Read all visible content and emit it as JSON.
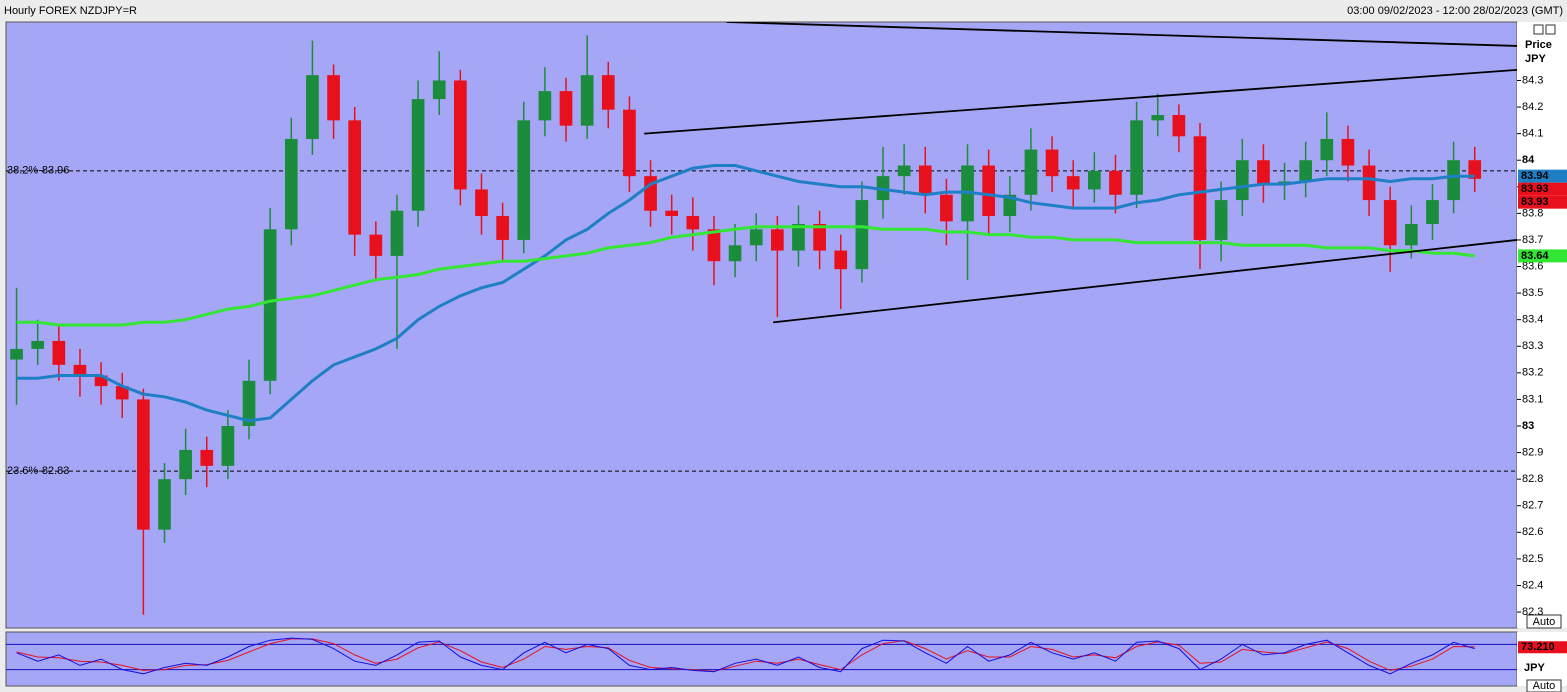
{
  "chart_data": [
    {
      "type": "candlestick",
      "title": "Hourly FOREX NZDJPY=R",
      "subtitle": "03:00 09/02/2023 - 12:00 28/02/2023 (GMT)",
      "axis_label": "Price",
      "unit": "JPY",
      "scale_mode": "Auto",
      "xlim": [
        -0.5,
        71
      ],
      "ylim": [
        82.24,
        84.52
      ],
      "yticks": [
        82.3,
        82.4,
        82.5,
        82.6,
        82.7,
        82.8,
        82.9,
        83,
        83.1,
        83.2,
        83.3,
        83.4,
        83.5,
        83.6,
        83.7,
        83.8,
        83.9,
        84,
        84.1,
        84.2,
        84.3
      ],
      "up_color": "#1a8c3c",
      "down_color": "#e8101c",
      "open": [
        83.25,
        83.29,
        83.32,
        83.23,
        83.19,
        83.15,
        83.1,
        82.61,
        82.8,
        82.91,
        82.85,
        83.0,
        83.17,
        83.74,
        84.08,
        84.32,
        84.15,
        83.72,
        83.64,
        83.81,
        84.23,
        84.3,
        83.89,
        83.79,
        83.7,
        84.15,
        84.26,
        84.13,
        84.32,
        84.19,
        83.94,
        83.81,
        83.79,
        83.74,
        83.62,
        83.68,
        83.74,
        83.66,
        83.76,
        83.66,
        83.59,
        83.85,
        83.94,
        83.98,
        83.87,
        83.77,
        83.98,
        83.79,
        83.87,
        84.04,
        83.94,
        83.89,
        83.96,
        83.87,
        84.15,
        84.17,
        84.09,
        83.7,
        83.85,
        84.0,
        83.91,
        83.92,
        84.0,
        84.08,
        83.98,
        83.85,
        83.68,
        83.76,
        83.85,
        84.0
      ],
      "high": [
        83.52,
        83.4,
        83.38,
        83.29,
        83.24,
        83.2,
        83.14,
        82.86,
        82.99,
        82.96,
        83.06,
        83.25,
        83.82,
        84.16,
        84.45,
        84.36,
        84.2,
        83.77,
        83.87,
        84.3,
        84.41,
        84.34,
        83.95,
        83.84,
        84.22,
        84.35,
        84.31,
        84.47,
        84.37,
        84.24,
        84.0,
        83.87,
        83.86,
        83.79,
        83.76,
        83.8,
        83.79,
        83.83,
        83.81,
        83.72,
        83.92,
        84.05,
        84.06,
        84.05,
        83.93,
        84.06,
        84.04,
        83.94,
        84.12,
        84.09,
        84.0,
        84.03,
        84.02,
        84.22,
        84.25,
        84.21,
        84.14,
        83.92,
        84.08,
        84.06,
        83.99,
        84.07,
        84.18,
        84.13,
        84.04,
        83.9,
        83.83,
        83.91,
        84.07,
        84.05
      ],
      "low": [
        83.08,
        83.23,
        83.17,
        83.11,
        83.08,
        83.03,
        82.29,
        82.56,
        82.74,
        82.77,
        82.8,
        82.95,
        83.12,
        83.68,
        84.02,
        84.08,
        83.64,
        83.55,
        83.29,
        83.75,
        84.17,
        83.83,
        83.72,
        83.62,
        83.65,
        84.09,
        84.07,
        84.08,
        84.12,
        83.88,
        83.75,
        83.72,
        83.66,
        83.53,
        83.56,
        83.62,
        83.41,
        83.6,
        83.59,
        83.44,
        83.54,
        83.78,
        83.87,
        83.8,
        83.68,
        83.55,
        83.72,
        83.73,
        83.81,
        83.88,
        83.82,
        83.84,
        83.8,
        83.82,
        84.09,
        84.03,
        83.59,
        83.62,
        83.79,
        83.84,
        83.85,
        83.86,
        83.94,
        83.92,
        83.79,
        83.58,
        83.63,
        83.7,
        83.8,
        83.88
      ],
      "close": [
        83.29,
        83.32,
        83.23,
        83.19,
        83.15,
        83.1,
        82.61,
        82.8,
        82.91,
        82.85,
        83.0,
        83.17,
        83.74,
        84.08,
        84.32,
        84.15,
        83.72,
        83.64,
        83.81,
        84.23,
        84.3,
        83.89,
        83.79,
        83.7,
        84.15,
        84.26,
        84.13,
        84.32,
        84.19,
        83.94,
        83.81,
        83.79,
        83.74,
        83.62,
        83.68,
        83.74,
        83.66,
        83.76,
        83.66,
        83.59,
        83.85,
        83.94,
        83.98,
        83.87,
        83.77,
        83.98,
        83.79,
        83.87,
        84.04,
        83.94,
        83.89,
        83.96,
        83.87,
        84.15,
        84.17,
        84.09,
        83.7,
        83.85,
        84.0,
        83.91,
        83.92,
        84.0,
        84.08,
        83.98,
        83.85,
        83.68,
        83.76,
        83.85,
        84.0,
        83.93
      ],
      "overlays": [
        {
          "color": "#1f7fc4",
          "values": [
            83.18,
            83.18,
            83.19,
            83.19,
            83.19,
            83.15,
            83.12,
            83.11,
            83.09,
            83.06,
            83.04,
            83.02,
            83.03,
            83.1,
            83.17,
            83.23,
            83.26,
            83.29,
            83.33,
            83.4,
            83.45,
            83.49,
            83.52,
            83.54,
            83.59,
            83.64,
            83.7,
            83.74,
            83.8,
            83.85,
            83.91,
            83.94,
            83.97,
            83.98,
            83.98,
            83.96,
            83.94,
            83.92,
            83.91,
            83.9,
            83.9,
            83.89,
            83.88,
            83.87,
            83.88,
            83.88,
            83.87,
            83.86,
            83.84,
            83.83,
            83.82,
            83.82,
            83.82,
            83.84,
            83.85,
            83.87,
            83.88,
            83.89,
            83.9,
            83.91,
            83.91,
            83.92,
            83.93,
            83.93,
            83.93,
            83.92,
            83.93,
            83.93,
            83.94,
            83.94
          ]
        },
        {
          "color": "#33e633",
          "values": [
            83.39,
            83.39,
            83.38,
            83.38,
            83.38,
            83.38,
            83.39,
            83.39,
            83.4,
            83.42,
            83.44,
            83.45,
            83.47,
            83.48,
            83.49,
            83.51,
            83.53,
            83.55,
            83.56,
            83.57,
            83.59,
            83.6,
            83.61,
            83.62,
            83.62,
            83.63,
            83.64,
            83.65,
            83.67,
            83.68,
            83.69,
            83.71,
            83.72,
            83.73,
            83.74,
            83.75,
            83.75,
            83.75,
            83.75,
            83.75,
            83.75,
            83.74,
            83.74,
            83.74,
            83.73,
            83.73,
            83.72,
            83.72,
            83.71,
            83.71,
            83.7,
            83.7,
            83.7,
            83.69,
            83.69,
            83.69,
            83.69,
            83.69,
            83.68,
            83.68,
            83.68,
            83.68,
            83.67,
            83.67,
            83.67,
            83.66,
            83.66,
            83.65,
            83.65,
            83.64
          ]
        }
      ],
      "trendlines": [
        {
          "color": "#000000",
          "x": [
            33.6,
            71
          ],
          "y": [
            84.52,
            84.43
          ]
        },
        {
          "color": "#000000",
          "x": [
            29.7,
            71
          ],
          "y": [
            84.1,
            84.34
          ]
        },
        {
          "color": "#000000",
          "x": [
            35.8,
            71
          ],
          "y": [
            83.39,
            83.7
          ]
        }
      ],
      "levels": [
        {
          "value": 83.96,
          "label": "38.2%-83.96"
        },
        {
          "value": 82.83,
          "label": "23.6%-82.83"
        }
      ],
      "price_tags": [
        {
          "value": 83.94,
          "color": "#1f7fc4"
        },
        {
          "value": 83.93,
          "color": "#e8101c"
        },
        {
          "value": 83.93,
          "color": "#e8101c"
        },
        {
          "value": 83.64,
          "color": "#33e633"
        }
      ]
    },
    {
      "type": "oscillator",
      "unit": "JPY",
      "scale_mode": "Auto",
      "xlim": [
        -0.5,
        71
      ],
      "ylim": [
        0,
        100
      ],
      "levels": [
        20,
        80
      ],
      "series": [
        {
          "color": "#e8101c",
          "values": [
            62,
            50,
            48,
            40,
            38,
            30,
            18,
            20,
            30,
            32,
            42,
            62,
            82,
            93,
            93,
            82,
            55,
            35,
            45,
            72,
            86,
            65,
            38,
            25,
            45,
            75,
            68,
            75,
            72,
            42,
            25,
            22,
            20,
            16,
            28,
            40,
            35,
            45,
            32,
            20,
            55,
            82,
            89,
            70,
            45,
            65,
            50,
            50,
            75,
            68,
            50,
            55,
            48,
            75,
            86,
            78,
            35,
            38,
            68,
            62,
            58,
            72,
            86,
            70,
            40,
            18,
            28,
            45,
            75,
            74
          ]
        },
        {
          "color": "#1010e0",
          "values": [
            60,
            40,
            55,
            30,
            45,
            20,
            10,
            25,
            35,
            30,
            50,
            75,
            90,
            95,
            92,
            70,
            40,
            30,
            55,
            85,
            88,
            50,
            30,
            20,
            60,
            85,
            60,
            80,
            70,
            30,
            20,
            25,
            18,
            15,
            35,
            45,
            30,
            50,
            25,
            15,
            70,
            90,
            88,
            60,
            35,
            75,
            40,
            55,
            85,
            60,
            45,
            60,
            40,
            85,
            88,
            70,
            20,
            45,
            80,
            55,
            60,
            80,
            90,
            60,
            30,
            10,
            35,
            55,
            85,
            70
          ]
        }
      ],
      "price_tags": [
        {
          "value": 73.21,
          "label": "73.210",
          "color": "#e8101c"
        }
      ]
    }
  ]
}
